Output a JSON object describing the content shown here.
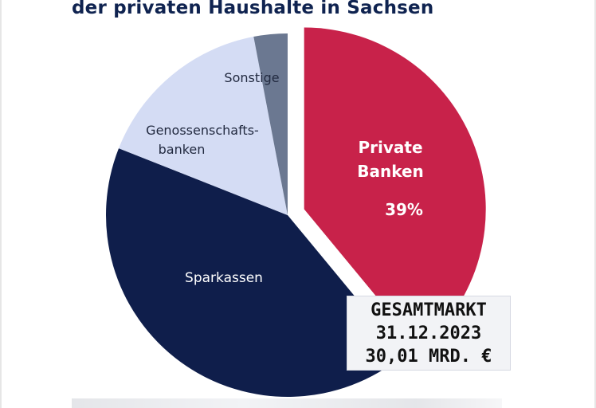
{
  "title_line": "der privaten Haushalte in Sachsen",
  "colors": {
    "private_banks": "#c8224a",
    "sparkassen": "#0f1e4b",
    "genossenschaftsbanken": "#d4dcf4",
    "sonstige": "#6b7891",
    "title": "#0f2350"
  },
  "total_box": {
    "line1": "GESAMTMARKT",
    "line2": "31.12.2023",
    "line3": "30,01 MRD. €"
  },
  "chart_data": {
    "type": "pie",
    "title": "der privaten Haushalte in Sachsen",
    "slices": [
      {
        "label": "Private Banken",
        "value": 39,
        "value_label": "39%",
        "color": "#c8224a",
        "exploded": true
      },
      {
        "label": "Sparkassen",
        "value": 42,
        "value_label": "",
        "color": "#0f1e4b",
        "exploded": false
      },
      {
        "label": "Genossenschafts-banken",
        "value": 16,
        "value_label": "",
        "color": "#d4dcf4",
        "exploded": false
      },
      {
        "label": "Sonstige",
        "value": 3,
        "value_label": "",
        "color": "#6b7891",
        "exploded": false
      }
    ]
  },
  "labels": {
    "private_line1": "Private",
    "private_line2": "Banken",
    "private_pct": "39%",
    "sparkassen": "Sparkassen",
    "geno_line1": "Genossenschafts-",
    "geno_line2": "banken",
    "sonstige": "Sonstige"
  }
}
